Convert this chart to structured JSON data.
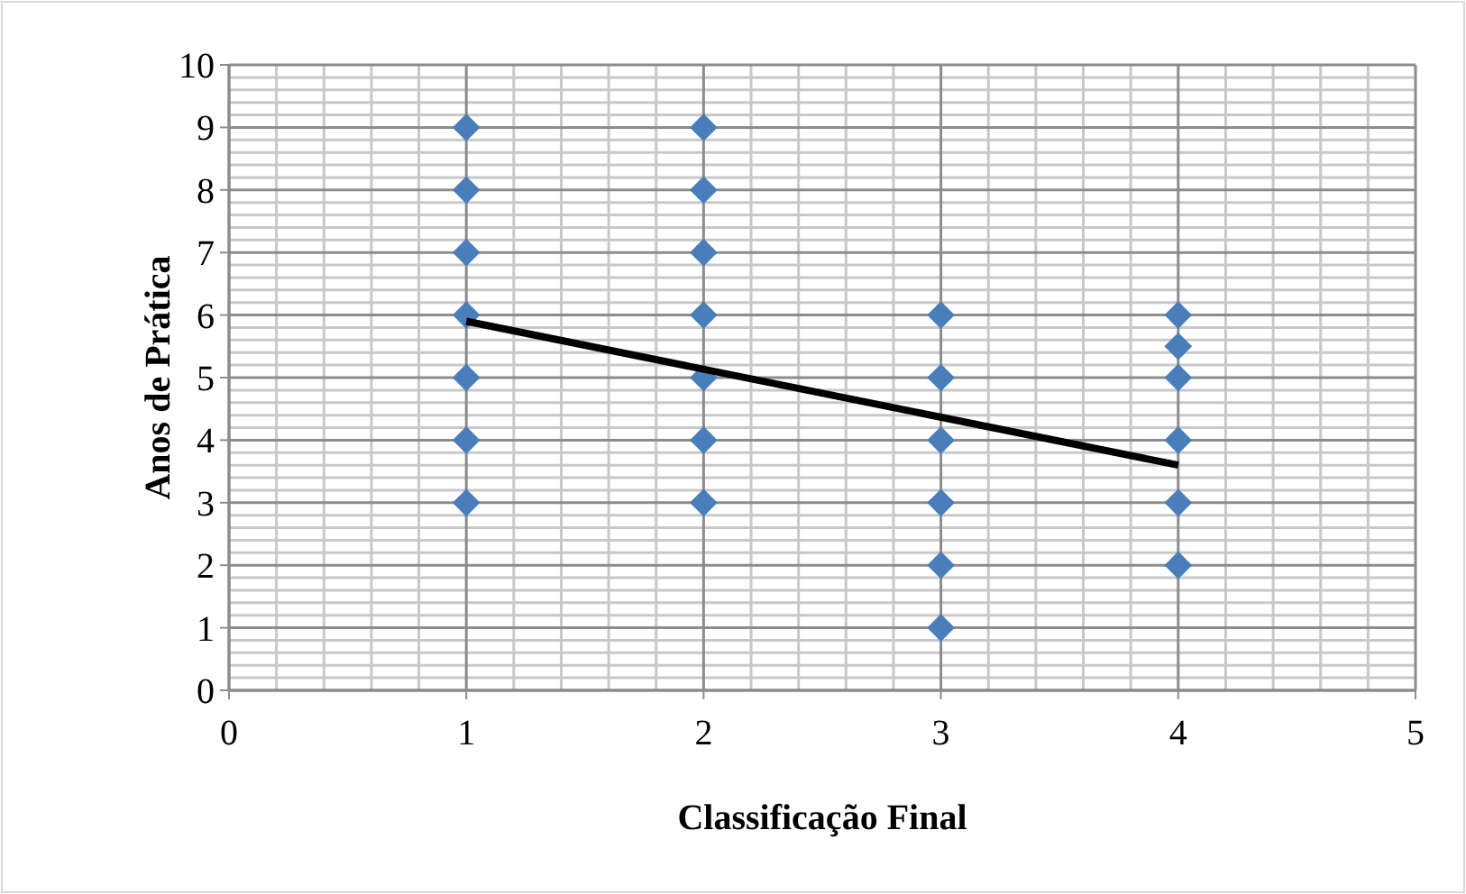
{
  "chart_data": {
    "type": "scatter",
    "xlabel": "Classificação Final",
    "ylabel": "Anos de Prática",
    "xlim": [
      0,
      5
    ],
    "xticks": [
      0,
      1,
      2,
      3,
      4,
      5
    ],
    "ylim": [
      0,
      10
    ],
    "yticks": [
      0,
      1,
      2,
      3,
      4,
      5,
      6,
      7,
      8,
      9,
      10
    ],
    "grid": true,
    "marker": "diamond",
    "series": [
      {
        "color": "#4a7ebb",
        "x": [
          1,
          1,
          1,
          1,
          1,
          1,
          1,
          2,
          2,
          2,
          2,
          2,
          2,
          2,
          3,
          3,
          3,
          3,
          3,
          3,
          4,
          4,
          4,
          4,
          4,
          4
        ],
        "values": [
          9,
          8,
          7,
          6,
          5,
          4,
          3,
          9,
          8,
          7,
          6,
          5,
          4,
          3,
          6,
          5,
          4,
          3,
          2,
          1,
          6,
          5.5,
          5,
          4,
          3,
          2
        ]
      },
      {
        "type": "line",
        "color": "#000000",
        "marker": "none",
        "x": [
          1,
          4
        ],
        "values": [
          5.9,
          3.6
        ]
      }
    ]
  }
}
